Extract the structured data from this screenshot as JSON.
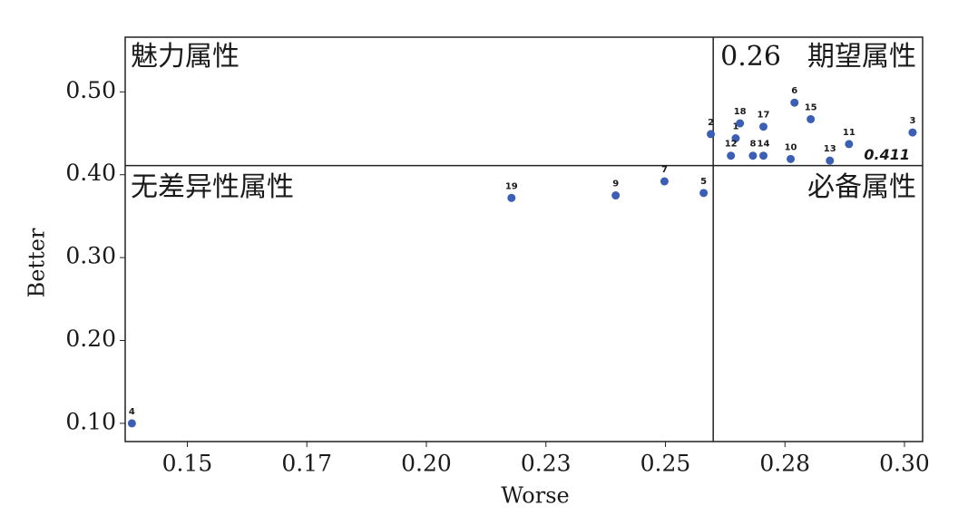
{
  "chart_data": {
    "type": "scatter",
    "x_label": "Worse",
    "y_label": "Better",
    "xlim": [
      0.137,
      0.3038
    ],
    "ylim": [
      0.078,
      0.566
    ],
    "xticks": [
      0.15,
      {
        "value": 0.175,
        "label": "0.17"
      },
      {
        "value": 0.2,
        "label": "0.20"
      },
      {
        "value": 0.225,
        "label": "0.23"
      },
      0.25,
      {
        "value": 0.275,
        "label": "0.28"
      },
      {
        "value": 0.3,
        "label": "0.30"
      }
    ],
    "yticks": [
      {
        "value": 0.1,
        "label": "0.10"
      },
      {
        "value": 0.2,
        "label": "0.20"
      },
      {
        "value": 0.3,
        "label": "0.30"
      },
      {
        "value": 0.4,
        "label": "0.40"
      },
      {
        "value": 0.5,
        "label": "0.50"
      }
    ],
    "color": "#3a5fb5",
    "point_labels": [
      "4",
      "19",
      "9",
      "7",
      "5",
      "2",
      "1",
      "18",
      "12",
      "8",
      "17",
      "14",
      "6",
      "10",
      "15",
      "13",
      "11",
      "3"
    ],
    "x": [
      0.1384,
      0.2178,
      0.2396,
      0.2498,
      0.258,
      0.2595,
      0.2647,
      0.2656,
      0.2637,
      0.2683,
      0.2705,
      0.2705,
      0.277,
      0.2762,
      0.2804,
      0.2844,
      0.2884,
      0.3017
    ],
    "y": [
      0.1,
      0.372,
      0.375,
      0.392,
      0.378,
      0.449,
      0.444,
      0.462,
      0.423,
      0.423,
      0.458,
      0.423,
      0.487,
      0.419,
      0.467,
      0.417,
      0.437,
      0.451
    ],
    "x_reference": {
      "value": 0.26,
      "label": "0.26"
    },
    "y_reference": {
      "value": 0.411,
      "label": "0.411"
    },
    "quadrant_labels": {
      "top_left": "魅力属性",
      "top_right": "期望属性",
      "bottom_left": "无差异性属性",
      "bottom_right": "必备属性"
    }
  }
}
